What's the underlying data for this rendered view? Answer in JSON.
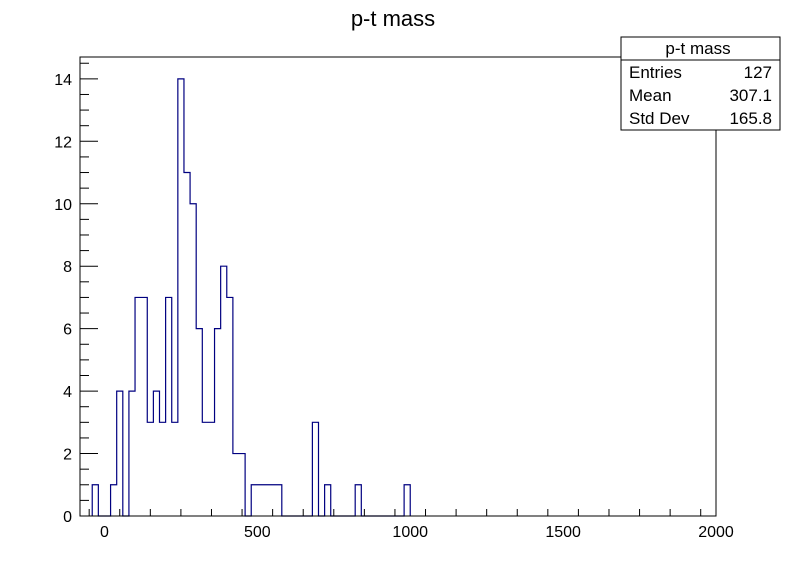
{
  "chart_data": {
    "type": "histogram",
    "title": "p-t mass",
    "xlabel": "",
    "ylabel": "",
    "xlim": [
      -80,
      2000
    ],
    "ylim": [
      0,
      14.7
    ],
    "bin_width": 20,
    "bins": [
      [
        -40,
        1
      ],
      [
        -20,
        0
      ],
      [
        0,
        0
      ],
      [
        20,
        1
      ],
      [
        40,
        4
      ],
      [
        60,
        0
      ],
      [
        80,
        4
      ],
      [
        100,
        7
      ],
      [
        120,
        7
      ],
      [
        140,
        3
      ],
      [
        160,
        4
      ],
      [
        180,
        3
      ],
      [
        200,
        7
      ],
      [
        220,
        3
      ],
      [
        240,
        14
      ],
      [
        260,
        11
      ],
      [
        280,
        10
      ],
      [
        300,
        6
      ],
      [
        320,
        3
      ],
      [
        340,
        3
      ],
      [
        360,
        6
      ],
      [
        380,
        8
      ],
      [
        400,
        7
      ],
      [
        420,
        2
      ],
      [
        440,
        2
      ],
      [
        460,
        0
      ],
      [
        480,
        1
      ],
      [
        500,
        1
      ],
      [
        520,
        1
      ],
      [
        540,
        1
      ],
      [
        560,
        1
      ],
      [
        580,
        0
      ],
      [
        600,
        0
      ],
      [
        620,
        0
      ],
      [
        640,
        0
      ],
      [
        660,
        0
      ],
      [
        680,
        3
      ],
      [
        700,
        0
      ],
      [
        720,
        1
      ],
      [
        740,
        0
      ],
      [
        760,
        0
      ],
      [
        780,
        0
      ],
      [
        800,
        0
      ],
      [
        820,
        1
      ],
      [
        840,
        0
      ],
      [
        860,
        0
      ],
      [
        880,
        0
      ],
      [
        900,
        0
      ],
      [
        920,
        0
      ],
      [
        940,
        0
      ],
      [
        960,
        0
      ],
      [
        980,
        1
      ]
    ],
    "x_ticks": [
      "0",
      "500",
      "1000",
      "1500",
      "2000"
    ],
    "x_tick_values": [
      0,
      500,
      1000,
      1500,
      2000
    ],
    "y_ticks": [
      "0",
      "2",
      "4",
      "6",
      "8",
      "10",
      "12",
      "14"
    ],
    "y_tick_values": [
      0,
      2,
      4,
      6,
      8,
      10,
      12,
      14
    ],
    "line_color": "#000080",
    "grid": false,
    "stats_box": {
      "title": "p-t mass",
      "placement": "top-right",
      "rows": [
        {
          "label": "Entries",
          "value": "127"
        },
        {
          "label": "Mean",
          "value": "307.1"
        },
        {
          "label": "Std Dev",
          "value": "165.8"
        }
      ]
    }
  }
}
